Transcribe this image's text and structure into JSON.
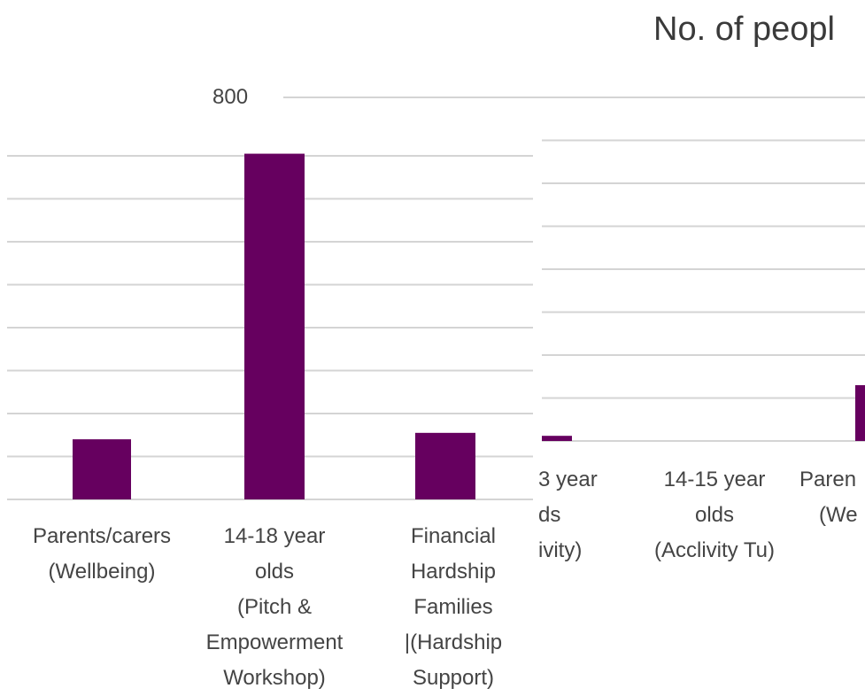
{
  "chart_data": [
    {
      "type": "bar",
      "title": "No. of peopl",
      "ylim": [
        0,
        800
      ],
      "ticks": [
        "800"
      ],
      "grid": true,
      "categories": [
        [
          "14-15 year",
          "olds",
          "(Acclivity Tu)"
        ],
        [
          "Paren",
          "(We"
        ]
      ],
      "partial_categories": [
        [
          "3 year",
          "ds",
          "ivity)"
        ]
      ],
      "values": [
        0,
        130
      ],
      "partial_values": [
        12
      ],
      "bar_color": "#66005f"
    },
    {
      "type": "bar",
      "categories": [
        [
          "Parents/carers",
          "(Wellbeing)"
        ],
        [
          "14-18 year",
          "olds",
          "(Pitch &",
          "Empowerment",
          "Workshop)"
        ],
        [
          "Financial",
          "Hardship",
          "Families",
          "|(Hardship",
          "Support)"
        ]
      ],
      "values": [
        140,
        805,
        155
      ],
      "ylim": [
        0,
        900
      ],
      "grid": true,
      "bar_color": "#66005f"
    }
  ]
}
